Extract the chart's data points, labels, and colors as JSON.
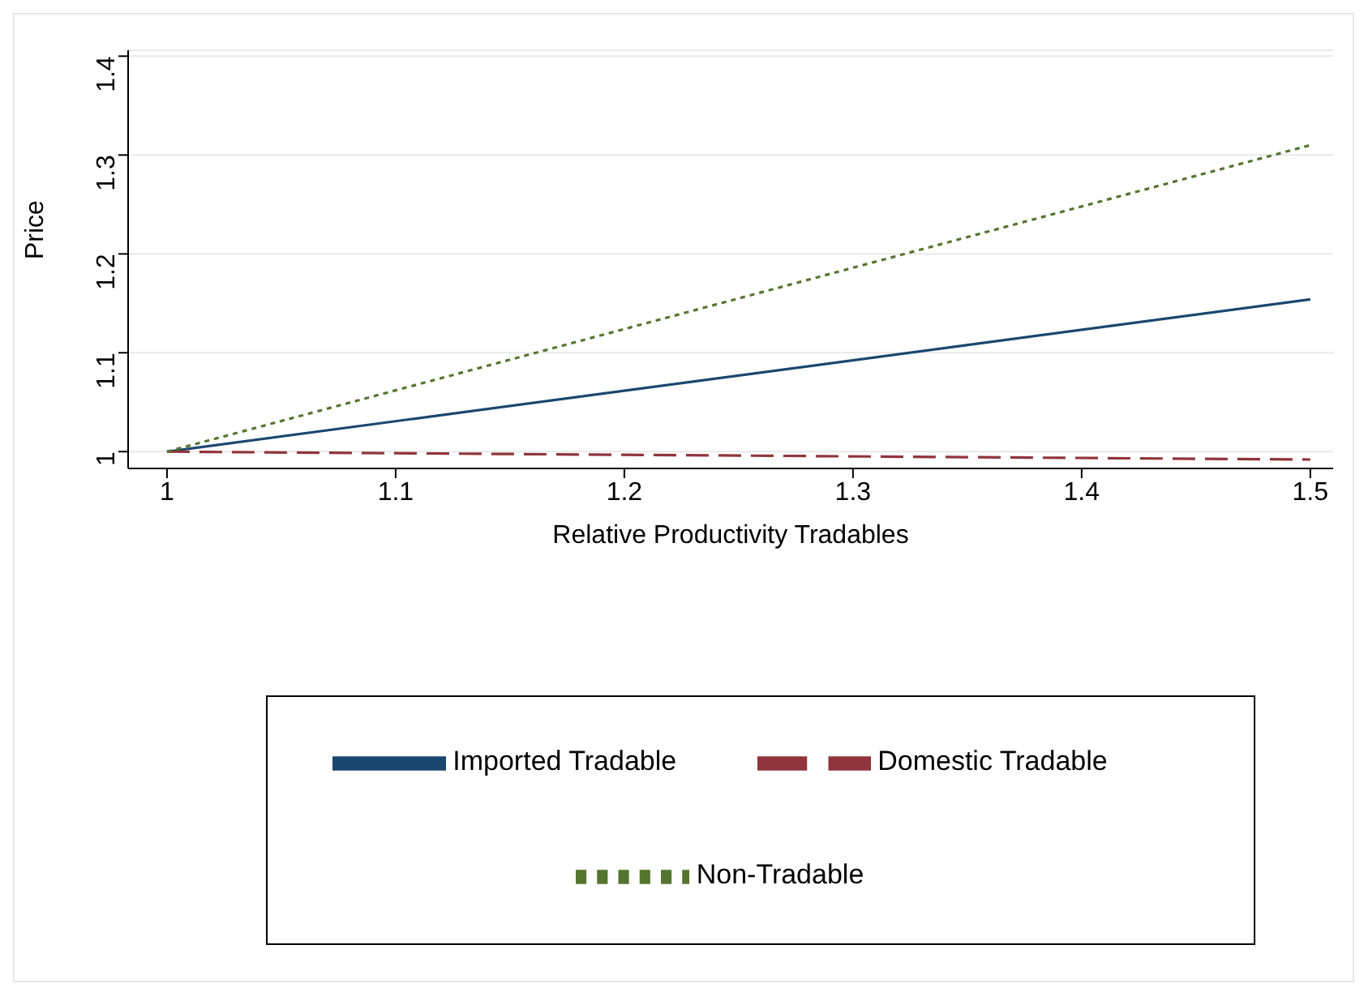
{
  "chart_data": {
    "type": "line",
    "xlabel": "Relative Productivity Tradables",
    "ylabel": "Price",
    "x": [
      1,
      1.5
    ],
    "series": [
      {
        "name": "Imported Tradable",
        "color": "#1a476f",
        "values": [
          1,
          1.154
        ],
        "line_style": "solid"
      },
      {
        "name": "Domestic Tradable",
        "color": "#90353b",
        "values": [
          1,
          0.992
        ],
        "line_style": "dashed"
      },
      {
        "name": "Non-Tradable",
        "color": "#55752f",
        "values": [
          1,
          1.31
        ],
        "line_style": "dotted"
      }
    ],
    "xlim": [
      0.983,
      1.51
    ],
    "xticks": [
      1,
      1.1,
      1.2,
      1.3,
      1.4,
      1.5
    ],
    "ylim": [
      0.983,
      1.406
    ],
    "yticks": [
      1,
      1.1,
      1.2,
      1.3,
      1.4
    ],
    "grid": "y",
    "legend": "bottom",
    "marker": "none"
  }
}
